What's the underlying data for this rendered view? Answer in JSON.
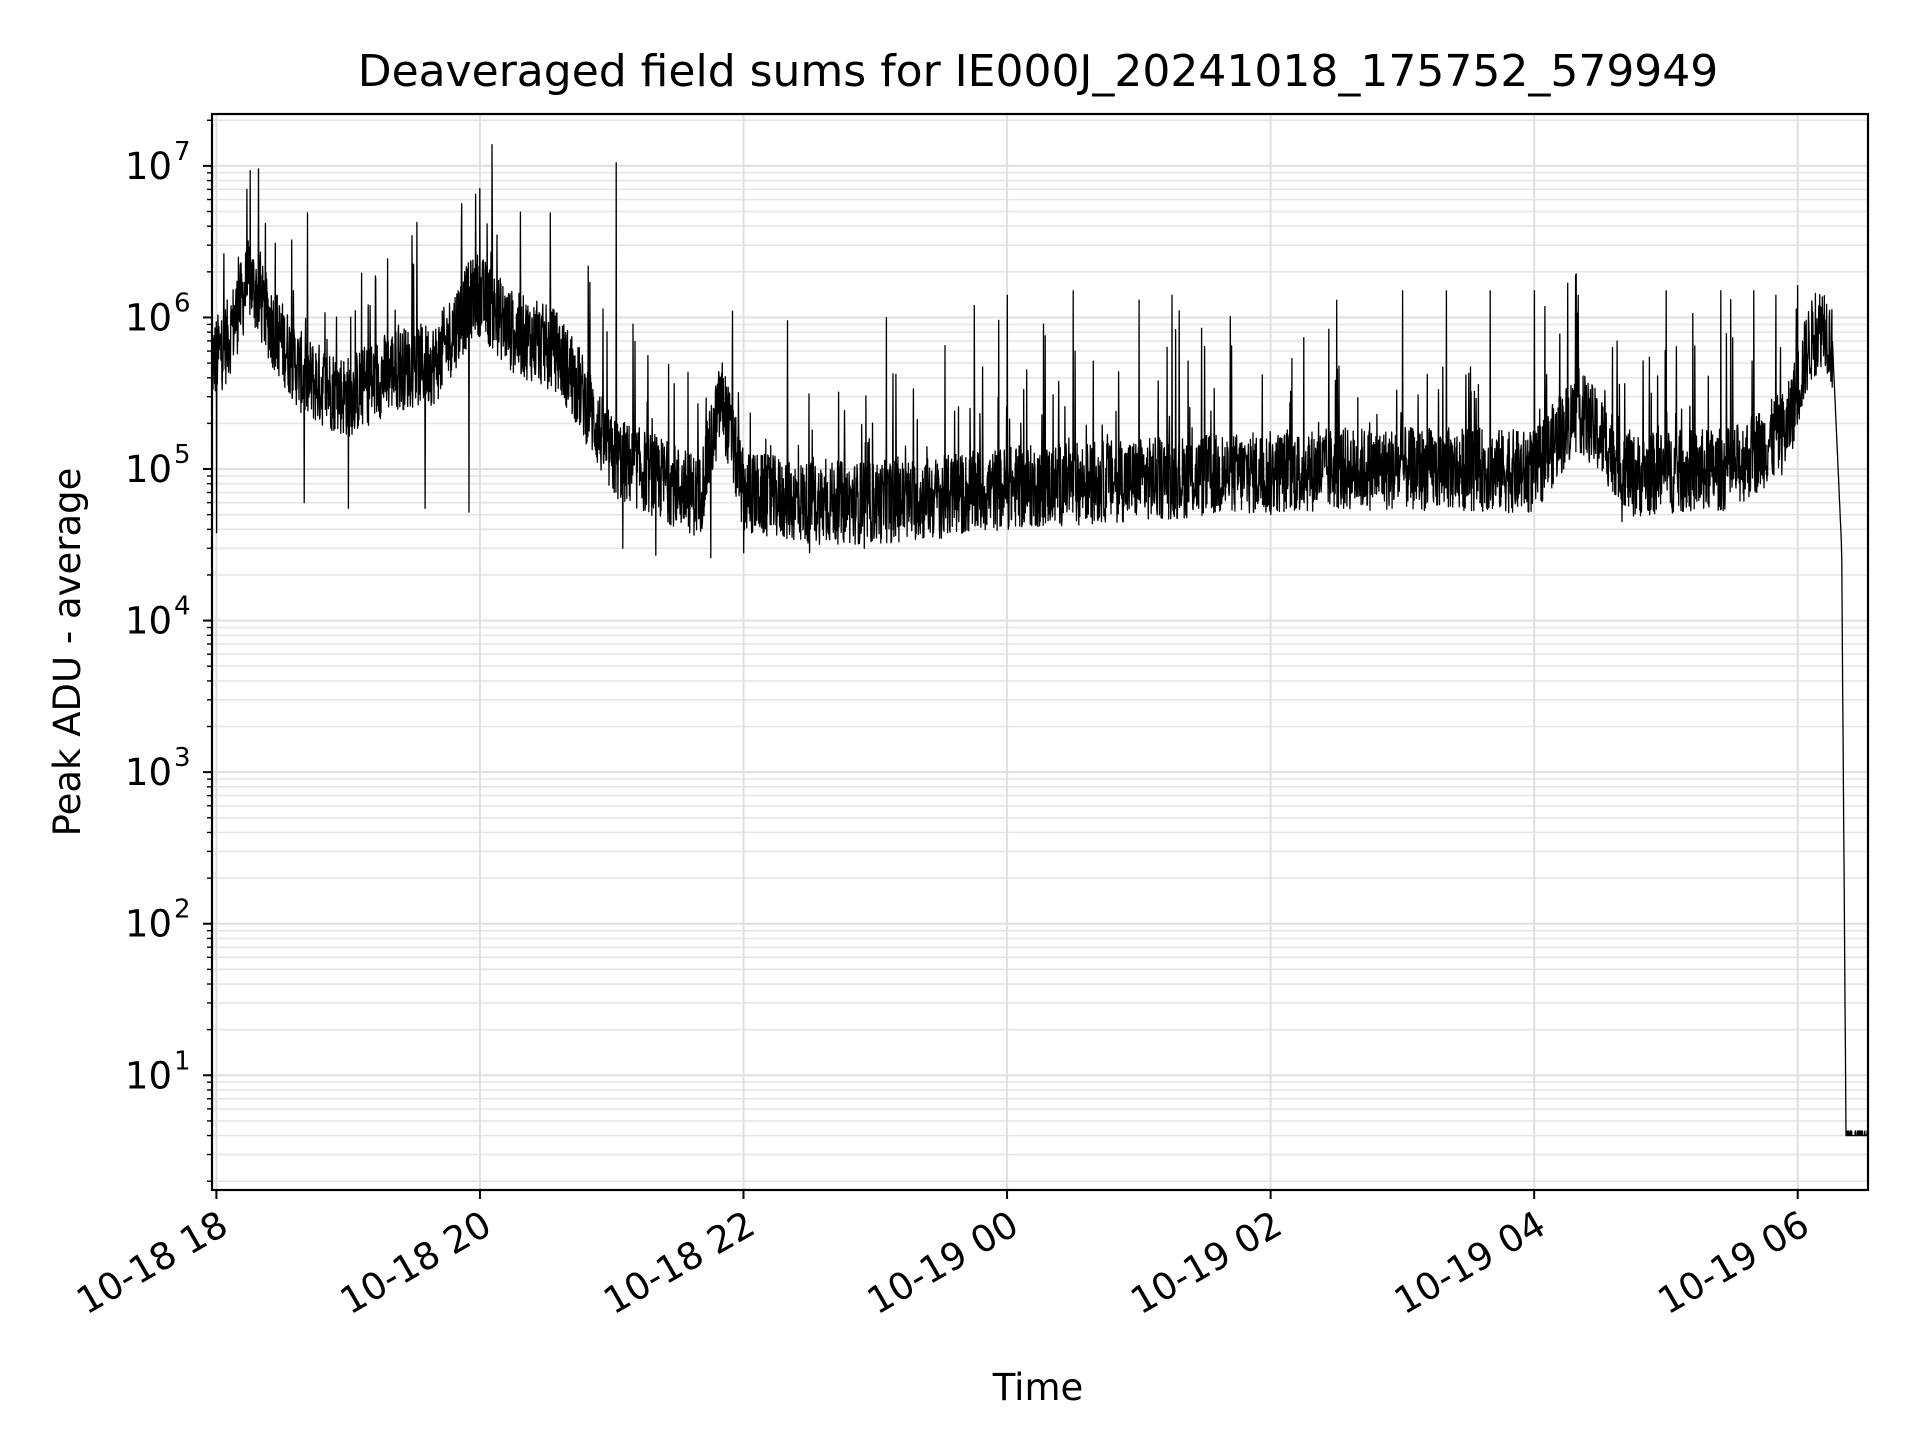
{
  "chart_data": {
    "type": "line",
    "title": "Deaveraged field sums for IE000J_20241018_175752_579949",
    "xlabel": "Time",
    "ylabel": "Peak ADU - average",
    "yscale": "log",
    "ylim": [
      1.75,
      22000000
    ],
    "xlim": [
      "2024-10-18 17:58",
      "2024-10-19 06:32"
    ],
    "grid": true,
    "x_ticks": [
      {
        "value": "2024-10-18 18:00",
        "label": "10-18 18"
      },
      {
        "value": "2024-10-18 20:00",
        "label": "10-18 20"
      },
      {
        "value": "2024-10-18 22:00",
        "label": "10-18 22"
      },
      {
        "value": "2024-10-19 00:00",
        "label": "10-19 00"
      },
      {
        "value": "2024-10-19 02:00",
        "label": "10-19 02"
      },
      {
        "value": "2024-10-19 04:00",
        "label": "10-19 04"
      },
      {
        "value": "2024-10-19 06:00",
        "label": "10-19 06"
      }
    ],
    "y_ticks": [
      {
        "value": 10,
        "base": "10",
        "exp": "1"
      },
      {
        "value": 100,
        "base": "10",
        "exp": "2"
      },
      {
        "value": 1000,
        "base": "10",
        "exp": "3"
      },
      {
        "value": 10000,
        "base": "10",
        "exp": "4"
      },
      {
        "value": 100000,
        "base": "10",
        "exp": "5"
      },
      {
        "value": 1000000,
        "base": "10",
        "exp": "6"
      },
      {
        "value": 10000000,
        "base": "10",
        "exp": "7"
      }
    ],
    "series": [
      {
        "color": "#000000",
        "points": [
          [
            "2024-10-18 17:58",
            500000
          ],
          [
            "2024-10-18 18:05",
            700000
          ],
          [
            "2024-10-18 18:15",
            1800000
          ],
          [
            "2024-10-18 18:25",
            900000
          ],
          [
            "2024-10-18 18:40",
            400000
          ],
          [
            "2024-10-18 19:00",
            300000
          ],
          [
            "2024-10-18 19:20",
            450000
          ],
          [
            "2024-10-18 19:40",
            500000
          ],
          [
            "2024-10-18 19:58",
            1500000
          ],
          [
            "2024-10-18 20:15",
            800000
          ],
          [
            "2024-10-18 20:35",
            600000
          ],
          [
            "2024-10-18 20:45",
            350000
          ],
          [
            "2024-10-18 21:00",
            120000
          ],
          [
            "2024-10-18 21:20",
            90000
          ],
          [
            "2024-10-18 21:40",
            65000
          ],
          [
            "2024-10-18 21:50",
            300000
          ],
          [
            "2024-10-18 22:00",
            70000
          ],
          [
            "2024-10-18 22:30",
            60000
          ],
          [
            "2024-10-18 23:00",
            60000
          ],
          [
            "2024-10-18 23:30",
            65000
          ],
          [
            "2024-10-19 00:00",
            75000
          ],
          [
            "2024-10-19 00:30",
            80000
          ],
          [
            "2024-10-19 01:00",
            85000
          ],
          [
            "2024-10-19 01:30",
            90000
          ],
          [
            "2024-10-19 02:00",
            95000
          ],
          [
            "2024-10-19 02:30",
            100000
          ],
          [
            "2024-10-19 03:00",
            100000
          ],
          [
            "2024-10-19 03:30",
            100000
          ],
          [
            "2024-10-19 04:00",
            95000
          ],
          [
            "2024-10-19 04:20",
            250000
          ],
          [
            "2024-10-19 04:45",
            90000
          ],
          [
            "2024-10-19 05:00",
            95000
          ],
          [
            "2024-10-19 05:30",
            100000
          ],
          [
            "2024-10-19 05:55",
            180000
          ],
          [
            "2024-10-19 06:05",
            650000
          ],
          [
            "2024-10-19 06:12",
            950000
          ],
          [
            "2024-10-19 06:16",
            600000
          ],
          [
            "2024-10-19 06:20",
            30000
          ],
          [
            "2024-10-19 06:22",
            4
          ],
          [
            "2024-10-19 06:32",
            4
          ]
        ],
        "spikes": [
          [
            "2024-10-18 18:10",
            2500000
          ],
          [
            "2024-10-18 18:20",
            2700000
          ],
          [
            "2024-10-18 18:35",
            1500000
          ],
          [
            "2024-10-18 19:10",
            1200000
          ],
          [
            "2024-10-18 19:50",
            1500000
          ],
          [
            "2024-10-18 19:58",
            6500000
          ],
          [
            "2024-10-18 20:05",
            2700000
          ],
          [
            "2024-10-18 20:32",
            4900000
          ],
          [
            "2024-10-18 20:50",
            1700000
          ],
          [
            "2024-10-18 21:02",
            10500000
          ],
          [
            "2024-10-18 21:20",
            1600000
          ],
          [
            "2024-10-18 21:55",
            1100000
          ],
          [
            "2024-10-18 22:20",
            950000
          ],
          [
            "2024-10-18 23:05",
            1000000
          ],
          [
            "2024-10-18 23:45",
            1200000
          ],
          [
            "2024-10-19 00:00",
            1400000
          ],
          [
            "2024-10-19 00:30",
            1500000
          ],
          [
            "2024-10-19 01:00",
            1300000
          ],
          [
            "2024-10-19 01:15",
            1400000
          ],
          [
            "2024-10-19 02:00",
            1400000
          ],
          [
            "2024-10-19 02:30",
            1300000
          ],
          [
            "2024-10-19 03:00",
            1500000
          ],
          [
            "2024-10-19 03:20",
            1500000
          ],
          [
            "2024-10-19 03:40",
            1500000
          ],
          [
            "2024-10-19 04:00",
            1500000
          ],
          [
            "2024-10-19 04:20",
            1400000
          ],
          [
            "2024-10-19 04:40",
            1500000
          ],
          [
            "2024-10-19 05:00",
            1500000
          ],
          [
            "2024-10-19 05:25",
            1500000
          ],
          [
            "2024-10-19 05:40",
            1500000
          ],
          [
            "2024-10-19 05:50",
            1400000
          ]
        ],
        "dips": [
          [
            "2024-10-18 18:00",
            38000
          ],
          [
            "2024-10-18 18:40",
            60000
          ],
          [
            "2024-10-18 19:00",
            55000
          ],
          [
            "2024-10-18 19:35",
            55000
          ],
          [
            "2024-10-18 19:55",
            52000
          ],
          [
            "2024-10-18 21:05",
            30000
          ],
          [
            "2024-10-18 21:20",
            27000
          ],
          [
            "2024-10-18 21:45",
            26000
          ],
          [
            "2024-10-18 22:00",
            28000
          ],
          [
            "2024-10-18 22:30",
            28000
          ],
          [
            "2024-10-18 22:55",
            30000
          ],
          [
            "2024-10-18 23:30",
            35000
          ],
          [
            "2024-10-19 00:15",
            45000
          ],
          [
            "2024-10-19 02:00",
            50000
          ],
          [
            "2024-10-19 04:40",
            45000
          ]
        ]
      }
    ]
  }
}
